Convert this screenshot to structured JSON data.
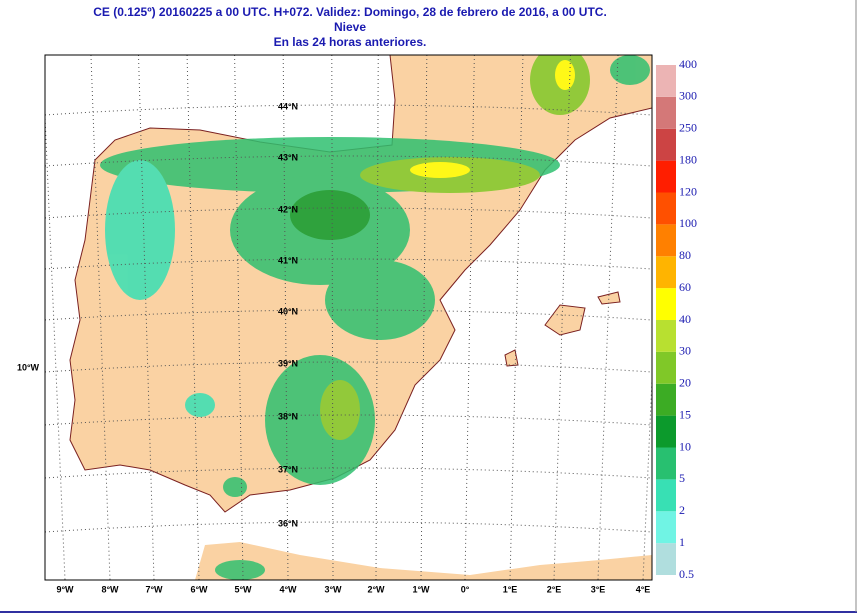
{
  "header": {
    "title": "CE (0.125º) 20160225 a 00 UTC.  H+072. Validez: Domingo, 28 de febrero de 2016,  a  00 UTC.",
    "variable": "Nieve",
    "period": "En las 24 horas anteriores."
  },
  "map": {
    "lat_labels": [
      "44°N",
      "43°N",
      "42°N",
      "41°N",
      "40°N",
      "39°N",
      "38°N",
      "37°N",
      "36°N"
    ],
    "lon_labels": [
      "9°W",
      "8°W",
      "7°W",
      "6°W",
      "5°W",
      "4°W",
      "3°W",
      "2°W",
      "1°W",
      "0°",
      "1°E",
      "2°E",
      "3°E",
      "4°E"
    ],
    "side_label": "10°W"
  },
  "legend": {
    "levels": [
      0.5,
      1,
      2,
      5,
      10,
      15,
      20,
      30,
      40,
      60,
      80,
      100,
      120,
      180,
      250,
      300,
      400
    ],
    "colors": [
      "#b0dede",
      "#70f4e4",
      "#38e0b4",
      "#28c070",
      "#0c9a2c",
      "#3cac24",
      "#80c828",
      "#b8e030",
      "#ffff00",
      "#ffb400",
      "#ff8000",
      "#ff5000",
      "#ff1e00",
      "#cc4444",
      "#d47878",
      "#ecb4b4"
    ]
  }
}
